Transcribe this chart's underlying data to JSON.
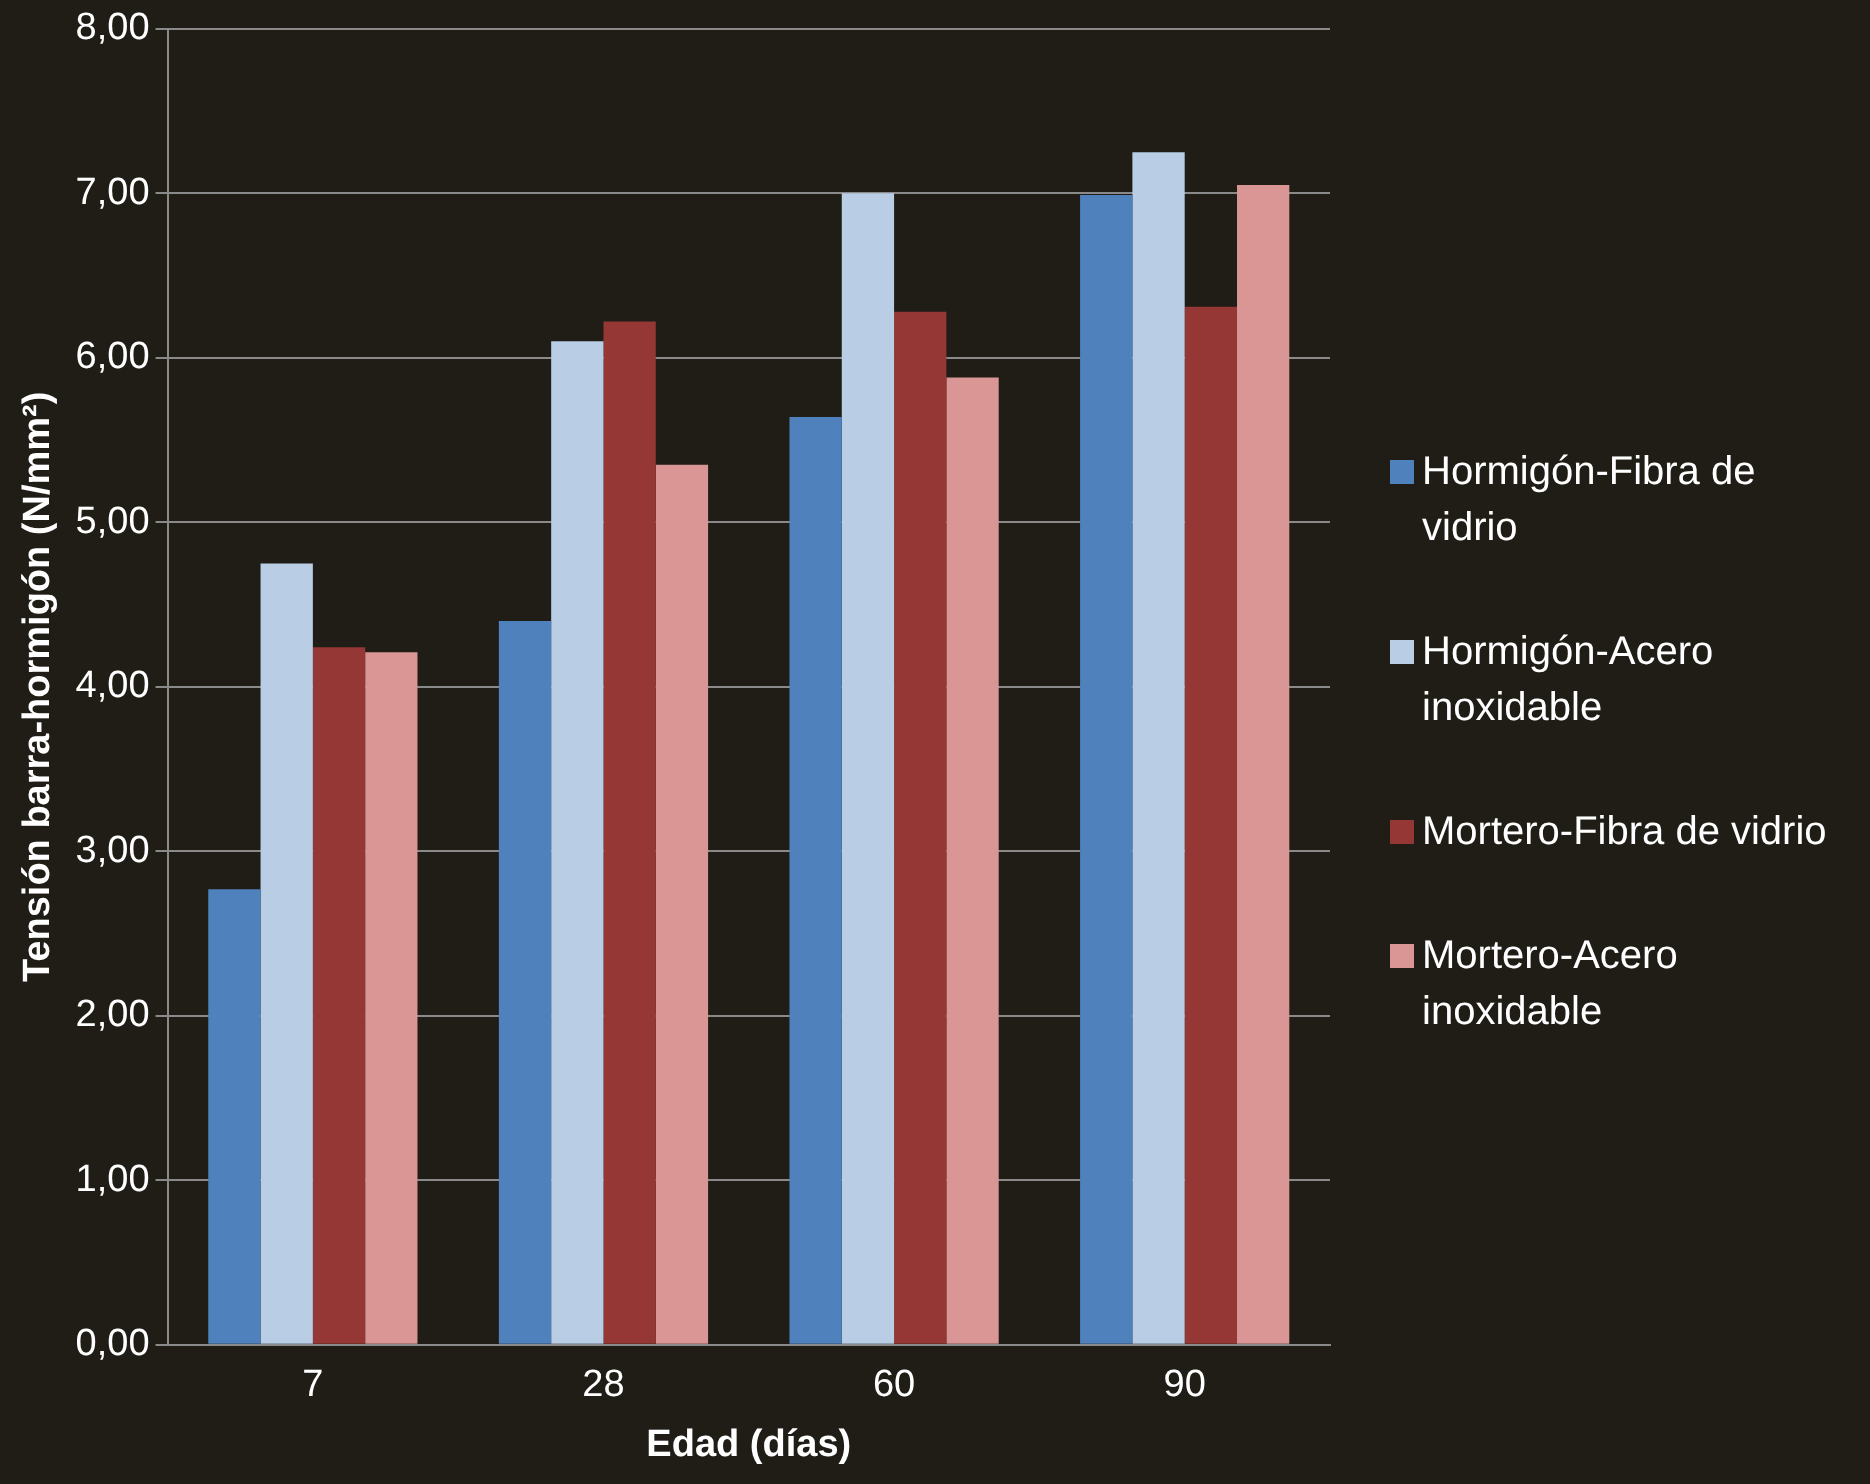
{
  "chart_data": {
    "type": "bar",
    "xlabel": "Edad (días)",
    "ylabel": "Tensión barra-hormigón (N/mm²)",
    "categories": [
      "7",
      "28",
      "60",
      "90"
    ],
    "series": [
      {
        "name": "Hormigón-Fibra de vidrio",
        "color": "#4f81bd",
        "values": [
          2.77,
          4.4,
          5.64,
          6.99
        ]
      },
      {
        "name": "Hormigón-Acero inoxidable",
        "color": "#b9cde5",
        "values": [
          4.75,
          6.1,
          7.0,
          7.25
        ]
      },
      {
        "name": "Mortero-Fibra de vidrio",
        "color": "#953735",
        "values": [
          4.24,
          6.22,
          6.28,
          6.31
        ]
      },
      {
        "name": "Mortero-Acero inoxidable",
        "color": "#d99694",
        "values": [
          4.21,
          5.35,
          5.88,
          7.05
        ]
      }
    ],
    "ylim": [
      0,
      8
    ],
    "yticks": [
      {
        "value": 0,
        "label": "0,00"
      },
      {
        "value": 1,
        "label": "1,00"
      },
      {
        "value": 2,
        "label": "2,00"
      },
      {
        "value": 3,
        "label": "3,00"
      },
      {
        "value": 4,
        "label": "4,00"
      },
      {
        "value": 5,
        "label": "5,00"
      },
      {
        "value": 6,
        "label": "6,00"
      },
      {
        "value": 7,
        "label": "7,00"
      },
      {
        "value": 8,
        "label": "8,00"
      }
    ],
    "grid": "y",
    "legend": "right"
  }
}
